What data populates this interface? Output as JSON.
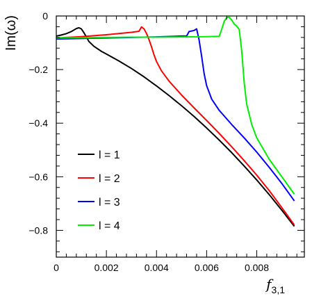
{
  "chart_data": {
    "type": "line",
    "title": "",
    "xlabel": "f",
    "xlabel_sub": "3,1",
    "ylabel": "Im(ω)",
    "xlim": [
      0,
      0.0099
    ],
    "ylim": [
      -0.9,
      0
    ],
    "x_ticks": [
      0,
      0.002,
      0.004,
      0.006,
      0.008
    ],
    "x_tick_labels": [
      "0",
      "0.002",
      "0.004",
      "0.006",
      "0.008"
    ],
    "y_ticks": [
      0,
      -0.2,
      -0.4,
      -0.6,
      -0.8
    ],
    "y_tick_labels": [
      "0",
      "−0.2",
      "−0.4",
      "−0.6",
      "−0.8"
    ],
    "grid": false,
    "legend_position": "lower-left",
    "series": [
      {
        "name": "l = 1",
        "color": "#000000",
        "x": [
          0,
          0.0002,
          0.0004,
          0.0006,
          0.0008,
          0.0009,
          0.001,
          0.0011,
          0.0012,
          0.0013,
          0.0015,
          0.0018,
          0.002,
          0.0025,
          0.003,
          0.0035,
          0.004,
          0.0045,
          0.005,
          0.0055,
          0.006,
          0.0065,
          0.007,
          0.0075,
          0.008,
          0.0085,
          0.009,
          0.0095
        ],
        "y": [
          -0.075,
          -0.071,
          -0.066,
          -0.058,
          -0.047,
          -0.044,
          -0.048,
          -0.062,
          -0.078,
          -0.095,
          -0.113,
          -0.132,
          -0.142,
          -0.168,
          -0.196,
          -0.227,
          -0.261,
          -0.297,
          -0.335,
          -0.375,
          -0.418,
          -0.463,
          -0.51,
          -0.56,
          -0.612,
          -0.667,
          -0.725,
          -0.785
        ]
      },
      {
        "name": "l = 2",
        "color": "#ff0000",
        "x": [
          0,
          0.001,
          0.002,
          0.003,
          0.0033,
          0.0034,
          0.0035,
          0.0036,
          0.0037,
          0.0038,
          0.0039,
          0.004,
          0.0042,
          0.0045,
          0.005,
          0.0055,
          0.006,
          0.0065,
          0.007,
          0.0075,
          0.008,
          0.0085,
          0.009,
          0.0095
        ],
        "y": [
          -0.082,
          -0.077,
          -0.07,
          -0.061,
          -0.057,
          -0.041,
          -0.048,
          -0.065,
          -0.088,
          -0.115,
          -0.145,
          -0.17,
          -0.205,
          -0.243,
          -0.295,
          -0.343,
          -0.39,
          -0.438,
          -0.488,
          -0.54,
          -0.594,
          -0.652,
          -0.715,
          -0.78
        ]
      },
      {
        "name": "l = 3",
        "color": "#0000ff",
        "x": [
          0,
          0.001,
          0.002,
          0.003,
          0.004,
          0.005,
          0.0052,
          0.0053,
          0.0055,
          0.0056,
          0.0057,
          0.0058,
          0.0059,
          0.006,
          0.0062,
          0.0065,
          0.007,
          0.0075,
          0.008,
          0.0085,
          0.009,
          0.0095
        ],
        "y": [
          -0.086,
          -0.084,
          -0.082,
          -0.08,
          -0.078,
          -0.075,
          -0.075,
          -0.058,
          -0.054,
          -0.048,
          -0.09,
          -0.15,
          -0.215,
          -0.26,
          -0.31,
          -0.352,
          -0.405,
          -0.455,
          -0.508,
          -0.565,
          -0.625,
          -0.69
        ]
      },
      {
        "name": "l = 4",
        "color": "#00ee00",
        "x": [
          0,
          0.001,
          0.002,
          0.003,
          0.004,
          0.005,
          0.006,
          0.0065,
          0.0066,
          0.0067,
          0.0068,
          0.0069,
          0.007,
          0.0071,
          0.0072,
          0.0073,
          0.0074,
          0.0075,
          0.0076,
          0.0078,
          0.008,
          0.0085,
          0.009,
          0.0095
        ],
        "y": [
          -0.082,
          -0.081,
          -0.08,
          -0.079,
          -0.079,
          -0.078,
          -0.077,
          -0.076,
          -0.05,
          -0.02,
          -0.006,
          -0.005,
          -0.015,
          -0.03,
          -0.038,
          -0.05,
          -0.13,
          -0.25,
          -0.33,
          -0.405,
          -0.455,
          -0.535,
          -0.6,
          -0.665
        ]
      }
    ]
  }
}
